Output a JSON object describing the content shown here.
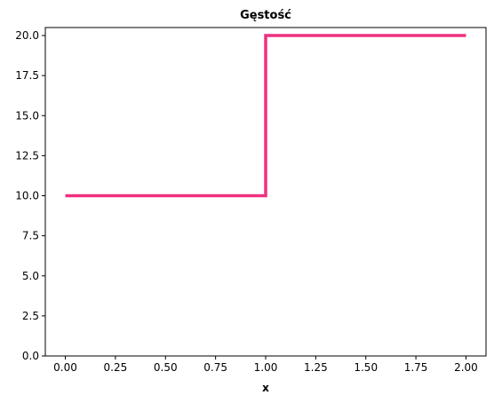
{
  "chart_data": {
    "type": "line",
    "step": true,
    "title": "Gęstość",
    "xlabel": "x",
    "ylabel": "",
    "xlim": [
      -0.1,
      2.1
    ],
    "ylim": [
      0,
      20.5
    ],
    "xticks": [
      0.0,
      0.25,
      0.5,
      0.75,
      1.0,
      1.25,
      1.5,
      1.75,
      2.0
    ],
    "xtick_labels": [
      "0.00",
      "0.25",
      "0.50",
      "0.75",
      "1.00",
      "1.25",
      "1.50",
      "1.75",
      "2.00"
    ],
    "yticks": [
      0.0,
      2.5,
      5.0,
      7.5,
      10.0,
      12.5,
      15.0,
      17.5,
      20.0
    ],
    "ytick_labels": [
      "0.0",
      "2.5",
      "5.0",
      "7.5",
      "10.0",
      "12.5",
      "15.0",
      "17.5",
      "20.0"
    ],
    "grid": false,
    "series": [
      {
        "color": "#f0307f",
        "x": [
          0.0,
          1.0,
          1.0,
          2.0
        ],
        "y": [
          10.0,
          10.0,
          20.0,
          20.0
        ]
      }
    ]
  }
}
